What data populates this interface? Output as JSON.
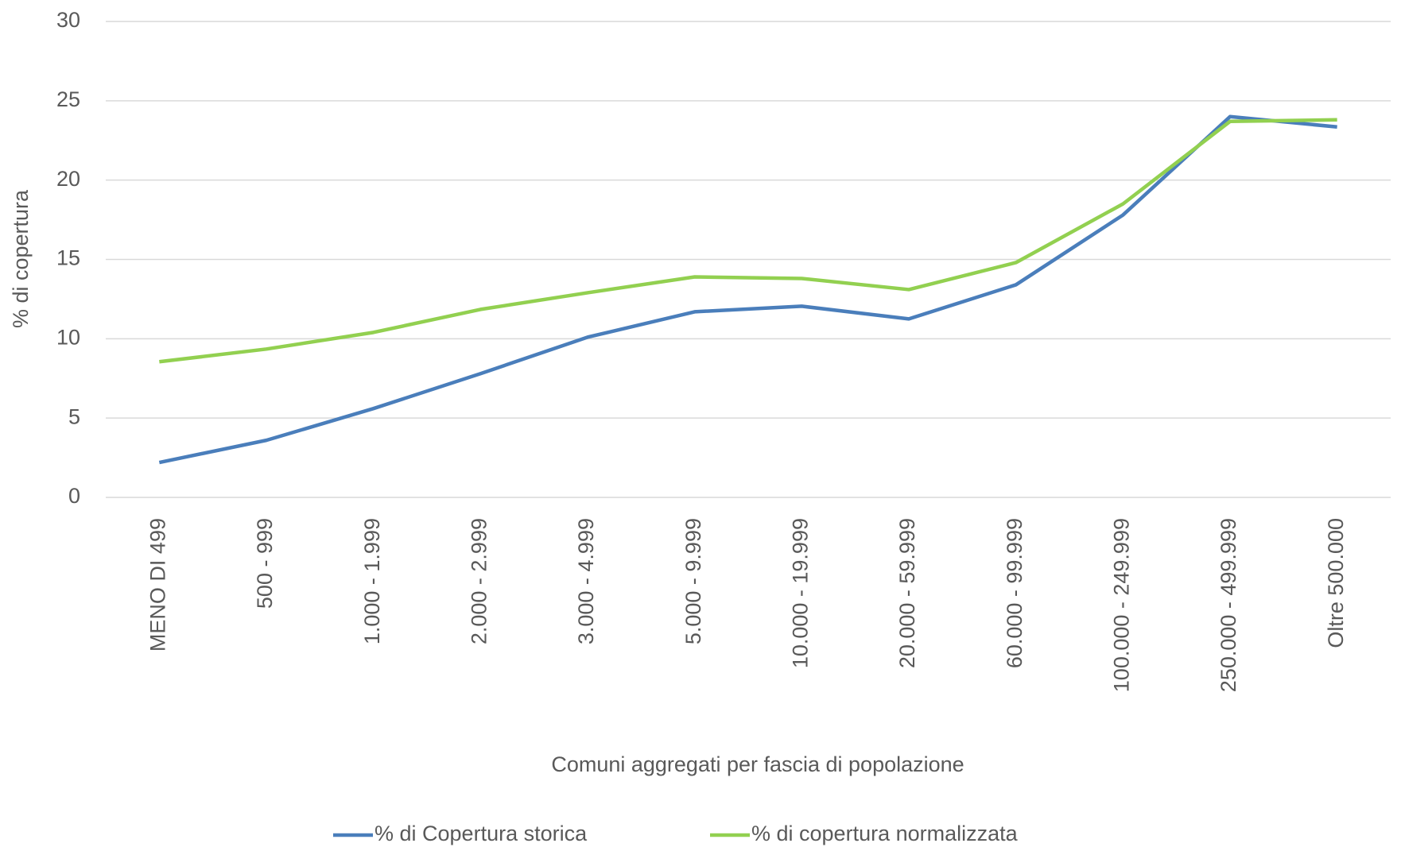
{
  "chart_data": {
    "type": "line",
    "x_label": "Comuni aggregati per fascia di popolazione",
    "y_label": "% di copertura",
    "categories": [
      "MENO DI 499",
      "500 - 999",
      "1.000 - 1.999",
      "2.000 - 2.999",
      "3.000 - 4.999",
      "5.000 - 9.999",
      "10.000 - 19.999",
      "20.000 - 59.999",
      "60.000 - 99.999",
      "100.000 - 249.999",
      "250.000 - 499.999",
      "Oltre 500.000"
    ],
    "series": [
      {
        "name": "% di Copertura storica",
        "color": "#4a7ebb",
        "values": [
          2.2,
          3.6,
          5.6,
          7.8,
          10.1,
          11.7,
          12.05,
          11.25,
          13.4,
          17.8,
          24.0,
          23.35
        ]
      },
      {
        "name": "% di copertura normalizzata",
        "color": "#92d050",
        "values": [
          8.55,
          9.35,
          10.4,
          11.85,
          12.9,
          13.9,
          13.8,
          13.1,
          14.8,
          18.5,
          23.7,
          23.8
        ]
      }
    ],
    "ylim": [
      0,
      30
    ],
    "yticks": [
      0,
      5,
      10,
      15,
      20,
      25,
      30
    ],
    "grid": true,
    "legend": "bottom"
  }
}
